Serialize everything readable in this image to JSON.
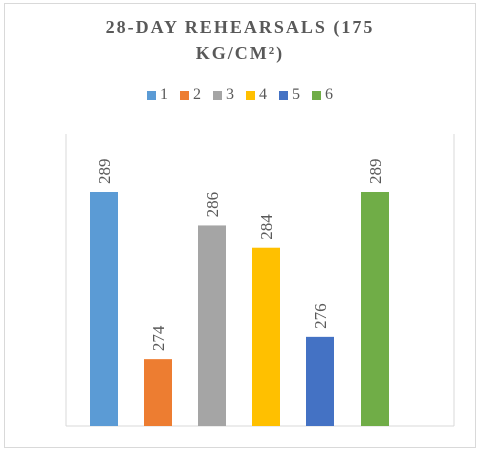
{
  "chart_data": {
    "type": "bar",
    "title_lines": [
      "28-DAY REHEARSALS (175",
      "KG/CM²)"
    ],
    "categories": [
      "1",
      "2",
      "3",
      "4",
      "5",
      "6"
    ],
    "values": [
      289,
      274,
      286,
      284,
      276,
      289
    ],
    "colors": [
      "#5b9bd5",
      "#ed7d31",
      "#a5a5a5",
      "#ffc000",
      "#4472c4",
      "#70ad47"
    ],
    "data_label_color": "#595959",
    "axis_line_color": "#d9d9d9",
    "legend_position": "top",
    "grid": false,
    "xlabel": "",
    "ylabel": ""
  }
}
